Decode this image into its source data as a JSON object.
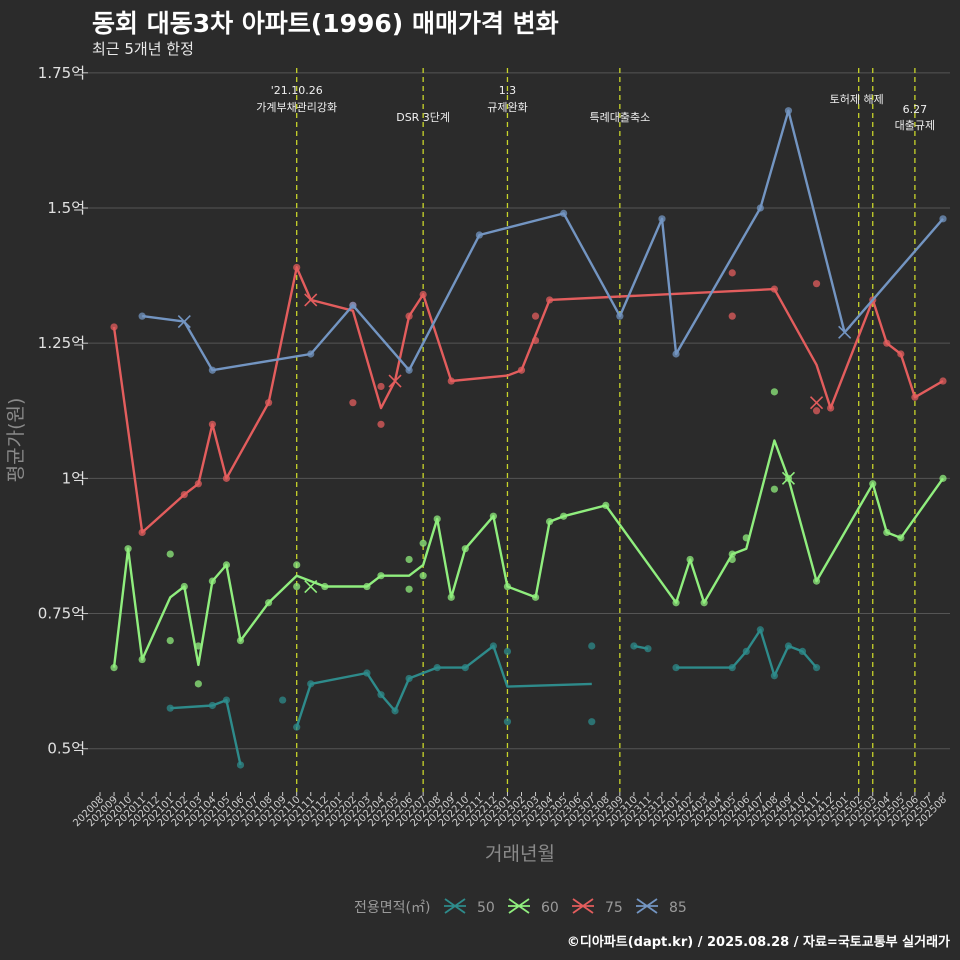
{
  "header": {
    "title": "동회 대동3차 아파트(1996) 매매가격 변화",
    "subtitle": "최근 5개년 한정"
  },
  "footer": {
    "credit": "©디아파트(dapt.kr) / 2025.08.28 / 자료=국토교통부 실거래가"
  },
  "colors": {
    "background": "#2b2b2b",
    "grid": "#555555",
    "event_line": "#c8d42a",
    "s50": "#2e8b8b",
    "s60": "#90ee7e",
    "s75": "#e35d5d",
    "s85": "#7395c2"
  },
  "chart_data": {
    "type": "line",
    "xlabel": "거래년월",
    "ylabel": "평균가(원)",
    "ylim": [
      0.42,
      1.77
    ],
    "yticks": [
      {
        "value": 0.5,
        "label": "0.5억"
      },
      {
        "value": 0.75,
        "label": "0.75억"
      },
      {
        "value": 1.0,
        "label": "1억"
      },
      {
        "value": 1.25,
        "label": "1.25억"
      },
      {
        "value": 1.5,
        "label": "1.5억"
      },
      {
        "value": 1.75,
        "label": "1.75억"
      }
    ],
    "x_start": "202008",
    "x_end": "202508",
    "xtick_labels": [
      "202008",
      "202009",
      "202010",
      "202011",
      "202012",
      "202101",
      "202102",
      "202103",
      "202104",
      "202105",
      "202106",
      "202107",
      "202108",
      "202109",
      "202110",
      "202111",
      "202112",
      "202201",
      "202202",
      "202203",
      "202204",
      "202205",
      "202206",
      "202207",
      "202208",
      "202209",
      "202210",
      "202211",
      "202212",
      "202301",
      "202302",
      "202303",
      "202304",
      "202305",
      "202306",
      "202307",
      "202308",
      "202309",
      "202310",
      "202311",
      "202312",
      "202401",
      "202402",
      "202403",
      "202404",
      "202405",
      "202406",
      "202407",
      "202408",
      "202409",
      "202410",
      "202411",
      "202412",
      "202501",
      "202502",
      "202503",
      "202504",
      "202505",
      "202506",
      "202507",
      "202508"
    ],
    "events": [
      {
        "date": "202110",
        "lines": [
          "'21.10.26",
          "가계부채관리강화"
        ]
      },
      {
        "date": "202207",
        "lines": [
          "DSR 3단계"
        ]
      },
      {
        "date": "202301",
        "lines": [
          "1.3",
          "규제완화"
        ]
      },
      {
        "date": "202309",
        "lines": [
          "특례대출축소"
        ]
      },
      {
        "date": "202502",
        "lines": [
          "토허제 해제"
        ]
      },
      {
        "date": "202503",
        "lines": [
          ""
        ]
      },
      {
        "date": "202506",
        "lines": [
          "6.27",
          "대출규제"
        ]
      }
    ],
    "legend": {
      "title": "전용면적(㎡)",
      "position": "bottom"
    },
    "series": [
      {
        "name": "50",
        "color": "#2e8b8b",
        "line": [
          [
            "202101",
            0.575
          ],
          [
            "202104",
            0.58
          ],
          [
            "202105",
            0.59
          ],
          [
            "202106",
            0.47
          ],
          null,
          [
            "202110",
            0.54
          ],
          [
            "202111",
            0.62
          ],
          [
            "202203",
            0.64
          ],
          [
            "202204",
            0.6
          ],
          [
            "202205",
            0.57
          ],
          [
            "202206",
            0.63
          ],
          [
            "202208",
            0.65
          ],
          [
            "202210",
            0.65
          ],
          [
            "202212",
            0.69
          ],
          [
            "202301",
            0.615
          ],
          [
            "202307",
            0.62
          ],
          null,
          [
            "202310",
            0.69
          ],
          [
            "202311",
            0.685
          ],
          null,
          [
            "202401",
            0.65
          ],
          [
            "202405",
            0.65
          ],
          [
            "202406",
            0.68
          ],
          [
            "202407",
            0.72
          ],
          [
            "202408",
            0.635
          ],
          [
            "202409",
            0.69
          ],
          [
            "202410",
            0.68
          ],
          [
            "202411",
            0.65
          ]
        ],
        "points": [
          [
            "202101",
            0.575
          ],
          [
            "202104",
            0.58
          ],
          [
            "202105",
            0.59
          ],
          [
            "202106",
            0.47
          ],
          [
            "202109",
            0.59
          ],
          [
            "202110",
            0.54
          ],
          [
            "202111",
            0.62
          ],
          [
            "202203",
            0.64
          ],
          [
            "202204",
            0.6
          ],
          [
            "202205",
            0.57
          ],
          [
            "202206",
            0.63
          ],
          [
            "202208",
            0.65
          ],
          [
            "202210",
            0.65
          ],
          [
            "202212",
            0.69
          ],
          [
            "202301",
            0.68
          ],
          [
            "202301",
            0.55
          ],
          [
            "202307",
            0.69
          ],
          [
            "202307",
            0.55
          ],
          [
            "202310",
            0.69
          ],
          [
            "202311",
            0.685
          ],
          [
            "202401",
            0.65
          ],
          [
            "202405",
            0.65
          ],
          [
            "202406",
            0.68
          ],
          [
            "202407",
            0.72
          ],
          [
            "202408",
            0.635
          ],
          [
            "202409",
            0.69
          ],
          [
            "202410",
            0.68
          ],
          [
            "202411",
            0.65
          ]
        ],
        "crosses": []
      },
      {
        "name": "60",
        "color": "#90ee7e",
        "line": [
          [
            "202009",
            0.65
          ],
          [
            "202010",
            0.87
          ],
          [
            "202011",
            0.665
          ],
          [
            "202101",
            0.78
          ],
          [
            "202102",
            0.8
          ],
          [
            "202103",
            0.655
          ],
          [
            "202104",
            0.81
          ],
          [
            "202105",
            0.84
          ],
          [
            "202106",
            0.7
          ],
          [
            "202108",
            0.77
          ],
          [
            "202110",
            0.82
          ],
          [
            "202112",
            0.8
          ],
          [
            "202203",
            0.8
          ],
          [
            "202204",
            0.82
          ],
          [
            "202206",
            0.82
          ],
          [
            "202207",
            0.84
          ],
          [
            "202208",
            0.925
          ],
          [
            "202209",
            0.78
          ],
          [
            "202210",
            0.87
          ],
          [
            "202212",
            0.93
          ],
          [
            "202301",
            0.8
          ],
          [
            "202303",
            0.78
          ],
          [
            "202304",
            0.92
          ],
          [
            "202305",
            0.93
          ],
          [
            "202308",
            0.95
          ],
          [
            "202401",
            0.77
          ],
          [
            "202402",
            0.85
          ],
          [
            "202403",
            0.77
          ],
          [
            "202405",
            0.86
          ],
          [
            "202406",
            0.87
          ],
          [
            "202408",
            1.07
          ],
          [
            "202409",
            1.0
          ],
          [
            "202411",
            0.81
          ],
          [
            "202503",
            0.99
          ],
          [
            "202504",
            0.9
          ],
          [
            "202505",
            0.89
          ],
          [
            "202508",
            1.0
          ]
        ],
        "points": [
          [
            "202009",
            0.65
          ],
          [
            "202010",
            0.87
          ],
          [
            "202011",
            0.665
          ],
          [
            "202101",
            0.86
          ],
          [
            "202101",
            0.7
          ],
          [
            "202102",
            0.8
          ],
          [
            "202103",
            0.69
          ],
          [
            "202103",
            0.62
          ],
          [
            "202104",
            0.81
          ],
          [
            "202105",
            0.84
          ],
          [
            "202106",
            0.7
          ],
          [
            "202108",
            0.77
          ],
          [
            "202110",
            0.84
          ],
          [
            "202110",
            0.8
          ],
          [
            "202112",
            0.8
          ],
          [
            "202203",
            0.8
          ],
          [
            "202204",
            0.82
          ],
          [
            "202206",
            0.85
          ],
          [
            "202206",
            0.795
          ],
          [
            "202207",
            0.88
          ],
          [
            "202207",
            0.82
          ],
          [
            "202208",
            0.925
          ],
          [
            "202209",
            0.78
          ],
          [
            "202210",
            0.87
          ],
          [
            "202212",
            0.93
          ],
          [
            "202301",
            0.8
          ],
          [
            "202303",
            0.78
          ],
          [
            "202304",
            0.92
          ],
          [
            "202305",
            0.93
          ],
          [
            "202308",
            0.95
          ],
          [
            "202401",
            0.77
          ],
          [
            "202402",
            0.85
          ],
          [
            "202403",
            0.77
          ],
          [
            "202405",
            0.86
          ],
          [
            "202405",
            0.85
          ],
          [
            "202406",
            0.89
          ],
          [
            "202408",
            1.16
          ],
          [
            "202408",
            0.98
          ],
          [
            "202409",
            1.0
          ],
          [
            "202411",
            0.81
          ],
          [
            "202503",
            0.99
          ],
          [
            "202504",
            0.9
          ],
          [
            "202505",
            0.89
          ],
          [
            "202508",
            1.0
          ]
        ],
        "crosses": [
          [
            "202111",
            0.8
          ],
          [
            "202409",
            1.0
          ]
        ]
      },
      {
        "name": "75",
        "color": "#e35d5d",
        "line": [
          [
            "202009",
            1.28
          ],
          [
            "202011",
            0.9
          ],
          [
            "202102",
            0.97
          ],
          [
            "202103",
            0.99
          ],
          [
            "202104",
            1.1
          ],
          [
            "202105",
            1.0
          ],
          [
            "202108",
            1.14
          ],
          [
            "202110",
            1.39
          ],
          [
            "202111",
            1.33
          ],
          [
            "202202",
            1.31
          ],
          [
            "202204",
            1.13
          ],
          [
            "202205",
            1.18
          ],
          [
            "202206",
            1.3
          ],
          [
            "202207",
            1.34
          ],
          [
            "202209",
            1.18
          ],
          [
            "202301",
            1.19
          ],
          [
            "202302",
            1.2
          ],
          [
            "202304",
            1.33
          ],
          [
            "202408",
            1.35
          ],
          [
            "202411",
            1.21
          ],
          [
            "202412",
            1.13
          ],
          [
            "202503",
            1.33
          ],
          [
            "202504",
            1.25
          ],
          [
            "202505",
            1.23
          ],
          [
            "202506",
            1.15
          ],
          [
            "202508",
            1.18
          ]
        ],
        "points": [
          [
            "202009",
            1.28
          ],
          [
            "202011",
            0.9
          ],
          [
            "202102",
            0.97
          ],
          [
            "202103",
            0.99
          ],
          [
            "202104",
            1.1
          ],
          [
            "202105",
            1.0
          ],
          [
            "202108",
            1.14
          ],
          [
            "202110",
            1.39
          ],
          [
            "202202",
            1.32
          ],
          [
            "202202",
            1.14
          ],
          [
            "202204",
            1.17
          ],
          [
            "202204",
            1.1
          ],
          [
            "202206",
            1.3
          ],
          [
            "202207",
            1.34
          ],
          [
            "202209",
            1.18
          ],
          [
            "202302",
            1.2
          ],
          [
            "202303",
            1.3
          ],
          [
            "202303",
            1.255
          ],
          [
            "202304",
            1.33
          ],
          [
            "202405",
            1.38
          ],
          [
            "202405",
            1.3
          ],
          [
            "202408",
            1.35
          ],
          [
            "202411",
            1.36
          ],
          [
            "202411",
            1.125
          ],
          [
            "202412",
            1.13
          ],
          [
            "202503",
            1.33
          ],
          [
            "202504",
            1.25
          ],
          [
            "202505",
            1.23
          ],
          [
            "202506",
            1.15
          ],
          [
            "202508",
            1.18
          ]
        ],
        "crosses": [
          [
            "202111",
            1.33
          ],
          [
            "202205",
            1.18
          ],
          [
            "202411",
            1.14
          ]
        ]
      },
      {
        "name": "85",
        "color": "#7395c2",
        "line": [
          [
            "202011",
            1.3
          ],
          [
            "202102",
            1.29
          ],
          [
            "202104",
            1.2
          ],
          [
            "202111",
            1.23
          ],
          [
            "202202",
            1.32
          ],
          [
            "202206",
            1.2
          ],
          [
            "202211",
            1.45
          ],
          [
            "202305",
            1.49
          ],
          [
            "202309",
            1.3
          ],
          [
            "202312",
            1.48
          ],
          [
            "202401",
            1.23
          ],
          [
            "202407",
            1.5
          ],
          [
            "202409",
            1.68
          ],
          [
            "202501",
            1.27
          ],
          [
            "202508",
            1.48
          ]
        ],
        "points": [
          [
            "202011",
            1.3
          ],
          [
            "202104",
            1.2
          ],
          [
            "202111",
            1.23
          ],
          [
            "202202",
            1.32
          ],
          [
            "202206",
            1.2
          ],
          [
            "202211",
            1.45
          ],
          [
            "202305",
            1.49
          ],
          [
            "202309",
            1.3
          ],
          [
            "202312",
            1.48
          ],
          [
            "202401",
            1.23
          ],
          [
            "202407",
            1.5
          ],
          [
            "202409",
            1.68
          ],
          [
            "202508",
            1.48
          ]
        ],
        "crosses": [
          [
            "202102",
            1.29
          ],
          [
            "202501",
            1.27
          ]
        ]
      }
    ]
  }
}
